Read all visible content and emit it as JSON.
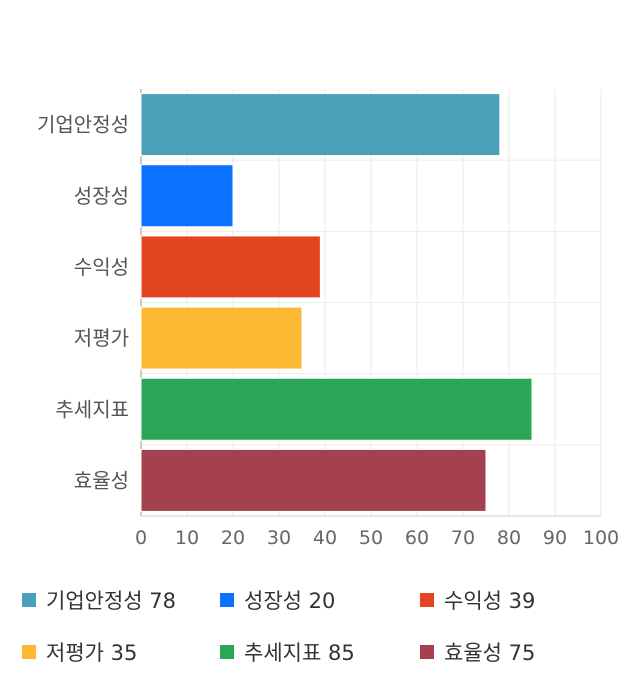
{
  "chart_data": {
    "type": "bar",
    "orientation": "horizontal",
    "categories": [
      "기업안정성",
      "성장성",
      "수익성",
      "저평가",
      "추세지표",
      "효율성"
    ],
    "values": [
      78,
      20,
      39,
      35,
      85,
      75
    ],
    "colors": [
      "#4aa0b8",
      "#0a72fe",
      "#e34523",
      "#fdb933",
      "#29a656",
      "#a5404e"
    ],
    "xlim": [
      0,
      100
    ],
    "xticks": [
      0,
      10,
      20,
      30,
      40,
      50,
      60,
      70,
      80,
      90,
      100
    ],
    "grid": true,
    "legend_position": "bottom"
  },
  "legend": [
    {
      "label": "기업안정성 78",
      "color": "#4aa0b8"
    },
    {
      "label": "성장성 20",
      "color": "#0a72fe"
    },
    {
      "label": "수익성 39",
      "color": "#e34523"
    },
    {
      "label": "저평가 35",
      "color": "#fdb933"
    },
    {
      "label": "추세지표 85",
      "color": "#29a656"
    },
    {
      "label": "효율성 75",
      "color": "#a5404e"
    }
  ]
}
